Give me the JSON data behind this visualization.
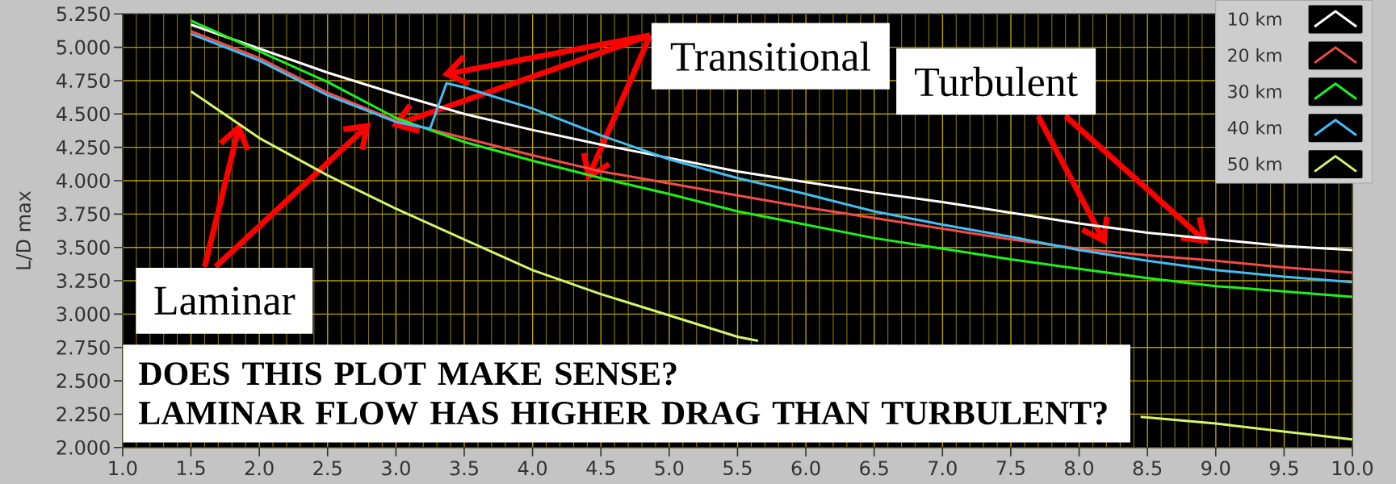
{
  "chart_data": {
    "type": "line",
    "ylabel": "L/D max",
    "xlim": [
      1,
      10
    ],
    "ylim": [
      2,
      5.25
    ],
    "xticks": [
      {
        "value": 1,
        "label": "1.0"
      },
      {
        "value": 1.1,
        "label": null
      },
      {
        "value": 1.2,
        "label": null
      },
      {
        "value": 1.3,
        "label": null
      },
      {
        "value": 1.4,
        "label": null
      },
      {
        "value": 1.5,
        "label": "1.5"
      },
      {
        "value": 1.6,
        "label": null
      },
      {
        "value": 1.7,
        "label": null
      },
      {
        "value": 1.8,
        "label": null
      },
      {
        "value": 1.9,
        "label": null
      },
      {
        "value": 2,
        "label": "2.0"
      },
      {
        "value": 2.1,
        "label": null
      },
      {
        "value": 2.2,
        "label": null
      },
      {
        "value": 2.3,
        "label": null
      },
      {
        "value": 2.4,
        "label": null
      },
      {
        "value": 2.5,
        "label": "2.5"
      },
      {
        "value": 2.6,
        "label": null
      },
      {
        "value": 2.7,
        "label": null
      },
      {
        "value": 2.8,
        "label": null
      },
      {
        "value": 2.9,
        "label": null
      },
      {
        "value": 3,
        "label": "3.0"
      },
      {
        "value": 3.1,
        "label": null
      },
      {
        "value": 3.2,
        "label": null
      },
      {
        "value": 3.3,
        "label": null
      },
      {
        "value": 3.4,
        "label": null
      },
      {
        "value": 3.5,
        "label": "3.5"
      },
      {
        "value": 3.6,
        "label": null
      },
      {
        "value": 3.7,
        "label": null
      },
      {
        "value": 3.8,
        "label": null
      },
      {
        "value": 3.9,
        "label": null
      },
      {
        "value": 4,
        "label": "4.0"
      },
      {
        "value": 4.1,
        "label": null
      },
      {
        "value": 4.2,
        "label": null
      },
      {
        "value": 4.3,
        "label": null
      },
      {
        "value": 4.4,
        "label": null
      },
      {
        "value": 4.5,
        "label": "4.5"
      },
      {
        "value": 4.6,
        "label": null
      },
      {
        "value": 4.7,
        "label": null
      },
      {
        "value": 4.8,
        "label": null
      },
      {
        "value": 4.9,
        "label": null
      },
      {
        "value": 5,
        "label": "5.0"
      },
      {
        "value": 5.1,
        "label": null
      },
      {
        "value": 5.2,
        "label": null
      },
      {
        "value": 5.3,
        "label": null
      },
      {
        "value": 5.4,
        "label": null
      },
      {
        "value": 5.5,
        "label": "5.5"
      },
      {
        "value": 5.6,
        "label": null
      },
      {
        "value": 5.7,
        "label": null
      },
      {
        "value": 5.8,
        "label": null
      },
      {
        "value": 5.9,
        "label": null
      },
      {
        "value": 6,
        "label": "6.0"
      },
      {
        "value": 6.1,
        "label": null
      },
      {
        "value": 6.2,
        "label": null
      },
      {
        "value": 6.3,
        "label": null
      },
      {
        "value": 6.4,
        "label": null
      },
      {
        "value": 6.5,
        "label": "6.5"
      },
      {
        "value": 6.6,
        "label": null
      },
      {
        "value": 6.7,
        "label": null
      },
      {
        "value": 6.8,
        "label": null
      },
      {
        "value": 6.9,
        "label": null
      },
      {
        "value": 7,
        "label": "7.0"
      },
      {
        "value": 7.1,
        "label": null
      },
      {
        "value": 7.2,
        "label": null
      },
      {
        "value": 7.3,
        "label": null
      },
      {
        "value": 7.4,
        "label": null
      },
      {
        "value": 7.5,
        "label": "7.5"
      },
      {
        "value": 7.6,
        "label": null
      },
      {
        "value": 7.7,
        "label": null
      },
      {
        "value": 7.8,
        "label": null
      },
      {
        "value": 7.9,
        "label": null
      },
      {
        "value": 8,
        "label": "8.0"
      },
      {
        "value": 8.1,
        "label": null
      },
      {
        "value": 8.2,
        "label": null
      },
      {
        "value": 8.3,
        "label": null
      },
      {
        "value": 8.4,
        "label": null
      },
      {
        "value": 8.5,
        "label": "8.5"
      },
      {
        "value": 8.6,
        "label": null
      },
      {
        "value": 8.7,
        "label": null
      },
      {
        "value": 8.8,
        "label": null
      },
      {
        "value": 8.9,
        "label": null
      },
      {
        "value": 9,
        "label": "9.0"
      },
      {
        "value": 9.1,
        "label": null
      },
      {
        "value": 9.2,
        "label": null
      },
      {
        "value": 9.3,
        "label": null
      },
      {
        "value": 9.4,
        "label": null
      },
      {
        "value": 9.5,
        "label": "9.5"
      },
      {
        "value": 9.6,
        "label": null
      },
      {
        "value": 9.7,
        "label": null
      },
      {
        "value": 9.8,
        "label": null
      },
      {
        "value": 9.9,
        "label": null
      },
      {
        "value": 10,
        "label": "10.0"
      }
    ],
    "yticks": [
      {
        "value": 2,
        "label": "2.000"
      },
      {
        "value": 2.25,
        "label": "2.250"
      },
      {
        "value": 2.5,
        "label": "2.500"
      },
      {
        "value": 2.75,
        "label": "2.750"
      },
      {
        "value": 3,
        "label": "3.000"
      },
      {
        "value": 3.25,
        "label": "3.250"
      },
      {
        "value": 3.5,
        "label": "3.500"
      },
      {
        "value": 3.75,
        "label": "3.750"
      },
      {
        "value": 4,
        "label": "4.000"
      },
      {
        "value": 4.25,
        "label": "4.250"
      },
      {
        "value": 4.5,
        "label": "4.500"
      },
      {
        "value": 4.75,
        "label": "4.750"
      },
      {
        "value": 5,
        "label": "5.000"
      },
      {
        "value": 5.25,
        "label": "5.250"
      }
    ],
    "grid": true,
    "legend": "top right",
    "x": [
      1.5,
      2.0,
      2.5,
      3.0,
      3.5,
      4.0,
      4.5,
      5.0,
      5.5,
      6.0,
      6.5,
      7.0,
      7.5,
      8.0,
      8.5,
      9.0,
      9.5,
      10.0
    ],
    "series": [
      {
        "name": "10 km",
        "color": "#ffffff",
        "values": [
          5.17,
          4.99,
          4.81,
          4.65,
          4.5,
          4.38,
          4.27,
          4.17,
          4.07,
          3.99,
          3.91,
          3.84,
          3.76,
          3.68,
          3.61,
          3.56,
          3.51,
          3.48
        ]
      },
      {
        "name": "20 km",
        "color": "#f24b4b",
        "values": [
          5.12,
          4.92,
          4.66,
          4.45,
          4.32,
          4.19,
          4.07,
          3.98,
          3.89,
          3.8,
          3.72,
          3.64,
          3.56,
          3.49,
          3.44,
          3.4,
          3.35,
          3.31
        ]
      },
      {
        "name": "30 km",
        "color": "#1ef01e",
        "values": [
          5.2,
          4.97,
          4.74,
          4.47,
          4.29,
          4.15,
          4.02,
          3.9,
          3.77,
          3.67,
          3.57,
          3.49,
          3.41,
          3.34,
          3.27,
          3.21,
          3.17,
          3.13
        ]
      },
      {
        "name": "40 km",
        "color": "#42bdf5",
        "x": [
          1.5,
          2.0,
          2.5,
          3.0,
          3.25,
          3.37,
          3.5,
          4.0,
          4.5,
          5.0,
          5.5,
          6.0,
          6.5,
          7.0,
          7.5,
          8.0,
          8.5,
          9.0,
          9.5,
          10.0
        ],
        "values": [
          5.1,
          4.9,
          4.64,
          4.44,
          4.39,
          4.73,
          4.7,
          4.54,
          4.34,
          4.16,
          4.02,
          3.9,
          3.77,
          3.67,
          3.58,
          3.48,
          3.4,
          3.33,
          3.28,
          3.24
        ]
      },
      {
        "name": "50 km",
        "color": "#d4f56e",
        "x": [
          1.5,
          2.0,
          2.5,
          3.0,
          3.5,
          4.0,
          4.5,
          5.0,
          5.5,
          5.65,
          7.0,
          8.45,
          9.0,
          9.5,
          10.0
        ],
        "values": [
          4.67,
          4.32,
          4.04,
          3.79,
          3.56,
          3.33,
          3.15,
          2.99,
          2.83,
          2.8,
          null,
          2.23,
          2.18,
          2.12,
          2.06
        ]
      }
    ],
    "annotations": [
      "Transitional",
      "Turbulent",
      "Laminar",
      "DOES THIS PLOT MAKE SENSE?",
      "LAMINAR FLOW HAS HIGHER DRAG THAN TURBULENT?"
    ]
  }
}
